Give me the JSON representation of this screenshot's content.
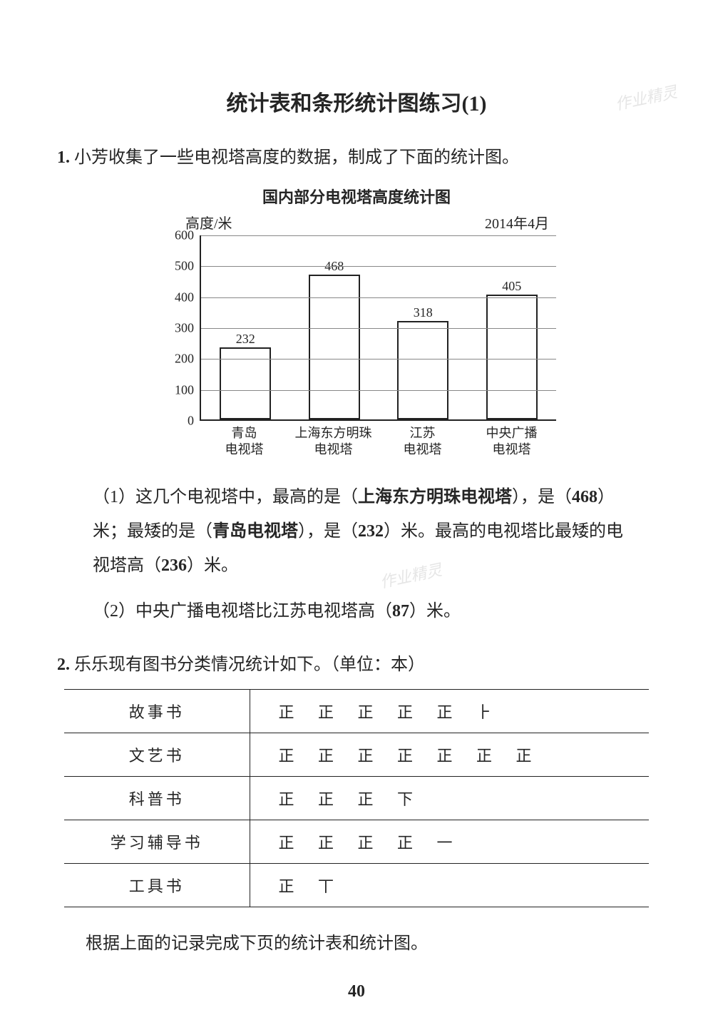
{
  "page": {
    "title": "统计表和条形统计图练习(1)",
    "page_number": "40",
    "watermark": "作业精灵"
  },
  "q1": {
    "number": "1.",
    "intro": "小芳收集了一些电视塔高度的数据，制成了下面的统计图。",
    "chart": {
      "type": "bar",
      "title": "国内部分电视塔高度统计图",
      "y_axis_label": "高度/米",
      "date_label": "2014年4月",
      "ylim_max": 600,
      "ytick_step": 100,
      "yticks": [
        "0",
        "100",
        "200",
        "300",
        "400",
        "500",
        "600"
      ],
      "bar_fill": "#ffffff",
      "bar_border": "#222222",
      "grid_color": "#888888",
      "background_color": "#ffffff",
      "label_fontsize": 18,
      "categories": [
        {
          "line1": "青岛",
          "line2": "电视塔",
          "value": 232
        },
        {
          "line1": "上海东方明珠",
          "line2": "电视塔",
          "value": 468
        },
        {
          "line1": "江苏",
          "line2": "电视塔",
          "value": 318
        },
        {
          "line1": "中央广播",
          "line2": "电视塔",
          "value": 405
        }
      ]
    },
    "sub1": {
      "prefix": "（1）这几个电视塔中，最高的是（",
      "ans1": "上海东方明珠电视塔",
      "mid1": "），是（",
      "ans2": "468",
      "mid2": "）米；最矮的是（",
      "ans3": "青岛电视塔",
      "mid3": "），是（",
      "ans4": "232",
      "mid4": "）米。最高的电视塔比最矮的电视塔高（",
      "ans5": "236",
      "suffix": "）米。"
    },
    "sub2": {
      "prefix": "（2）中央广播电视塔比江苏电视塔高（",
      "ans1": "87",
      "suffix": "）米。"
    }
  },
  "q2": {
    "number": "2.",
    "intro": "乐乐现有图书分类情况统计如下。（单位：本）",
    "table": {
      "rows": [
        {
          "category": "故事书",
          "tally": "正 正 正 正 正 ⺊"
        },
        {
          "category": "文艺书",
          "tally": "正 正 正 正 正 正 正"
        },
        {
          "category": "科普书",
          "tally": "正 正 正 下"
        },
        {
          "category": "学习辅导书",
          "tally": "正 正 正 正 一"
        },
        {
          "category": "工具书",
          "tally": "正 丅"
        }
      ]
    },
    "footer": "根据上面的记录完成下页的统计表和统计图。"
  }
}
